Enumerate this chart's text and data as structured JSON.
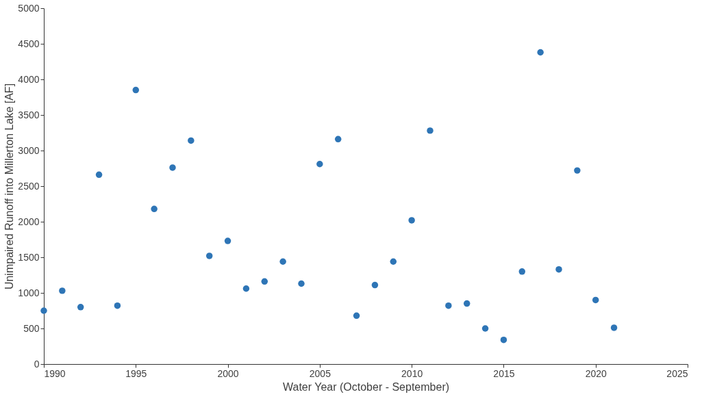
{
  "chart_data": {
    "type": "scatter",
    "xlabel": "Water Year (October - September)",
    "ylabel": "Unimpaired Runoff into Millerton Lake [AF]",
    "x": [
      1990,
      1991,
      1992,
      1993,
      1994,
      1995,
      1996,
      1997,
      1998,
      1999,
      2000,
      2001,
      2002,
      2003,
      2004,
      2005,
      2006,
      2007,
      2008,
      2009,
      2010,
      2011,
      2012,
      2013,
      2014,
      2015,
      2016,
      2017,
      2018,
      2019,
      2020,
      2021
    ],
    "series": [
      {
        "color": "#2e75b6",
        "values": [
          750,
          1030,
          800,
          2660,
          820,
          3850,
          2180,
          2760,
          3140,
          1520,
          1730,
          1060,
          1160,
          1440,
          1130,
          2810,
          3160,
          680,
          1110,
          1440,
          2020,
          3280,
          820,
          850,
          500,
          340,
          1300,
          4380,
          1330,
          2720,
          900,
          510
        ]
      }
    ],
    "xlim": [
      1990,
      2025
    ],
    "xticks": [
      1990,
      1995,
      2000,
      2005,
      2010,
      2015,
      2020,
      2025
    ],
    "ylim": [
      0,
      5000
    ],
    "yticks": [
      0,
      500,
      1000,
      1500,
      2000,
      2500,
      3000,
      3500,
      4000,
      4500,
      5000
    ],
    "grid": false,
    "legend": false,
    "marker": "circle"
  }
}
